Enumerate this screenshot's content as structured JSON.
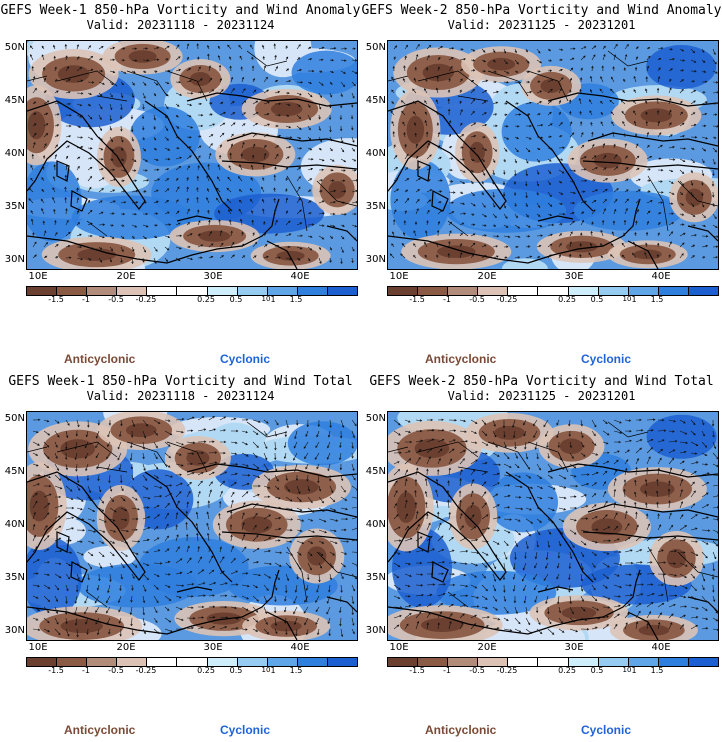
{
  "panels": [
    {
      "title": "GEFS Week-1 850-hPa Vorticity and Wind Anomaly",
      "valid": "Valid: 20231118 - 20231124",
      "kind": "anomaly",
      "seed": 11
    },
    {
      "title": "GEFS Week-2 850-hPa Vorticity and Wind Anomaly",
      "valid": "Valid: 20231125 - 20231201",
      "kind": "anomaly",
      "seed": 23
    },
    {
      "title": "GEFS Week-1 850-hPa Vorticity and Wind Total",
      "valid": "Valid: 20231118 - 20231124",
      "kind": "total",
      "seed": 37
    },
    {
      "title": "GEFS Week-2 850-hPa Vorticity and Wind Total",
      "valid": "Valid: 20231125 - 20231201",
      "kind": "total",
      "seed": 41
    }
  ],
  "lat_labels": [
    "50N",
    "45N",
    "40N",
    "35N",
    "30N"
  ],
  "lon_labels": [
    "10E",
    "20E",
    "30E",
    "40E"
  ],
  "colorbar": {
    "colors": [
      "#6b4030",
      "#8a5a44",
      "#b28c7a",
      "#dcc3b6",
      "#ffffff",
      "#ffffff",
      "#cfeefb",
      "#97ccf2",
      "#5ea6e8",
      "#2f7fde",
      "#1c5fd0"
    ],
    "ticks": [
      "-1.5",
      "-1",
      "-0.5",
      "-0.25",
      "0.25",
      "0.5",
      "1",
      "1.5"
    ],
    "scale_marker": "10"
  },
  "legend": {
    "anticyclonic": "Anticyclonic",
    "cyclonic": "Cyclonic"
  }
}
